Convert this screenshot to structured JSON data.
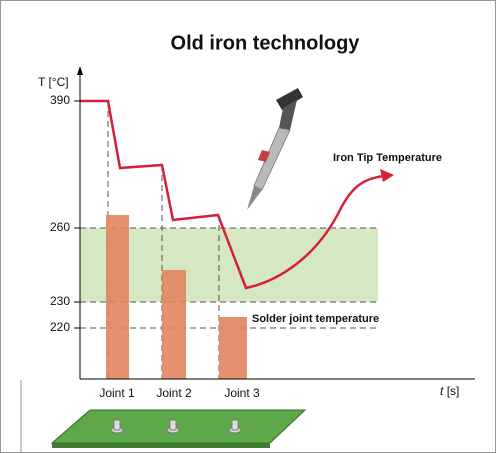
{
  "title": "Old iron technology",
  "y_axis": {
    "label": "T [°C]",
    "ticks": [
      "390",
      "260",
      "230",
      "220"
    ]
  },
  "x_axis": {
    "variable": "t",
    "unit": "[s]",
    "categories": [
      "Joint 1",
      "Joint 2",
      "Joint 3"
    ]
  },
  "annotations": {
    "iron_tip": "Iron Tip Temperature",
    "solder_joint": "Solder joint temperature"
  }
}
